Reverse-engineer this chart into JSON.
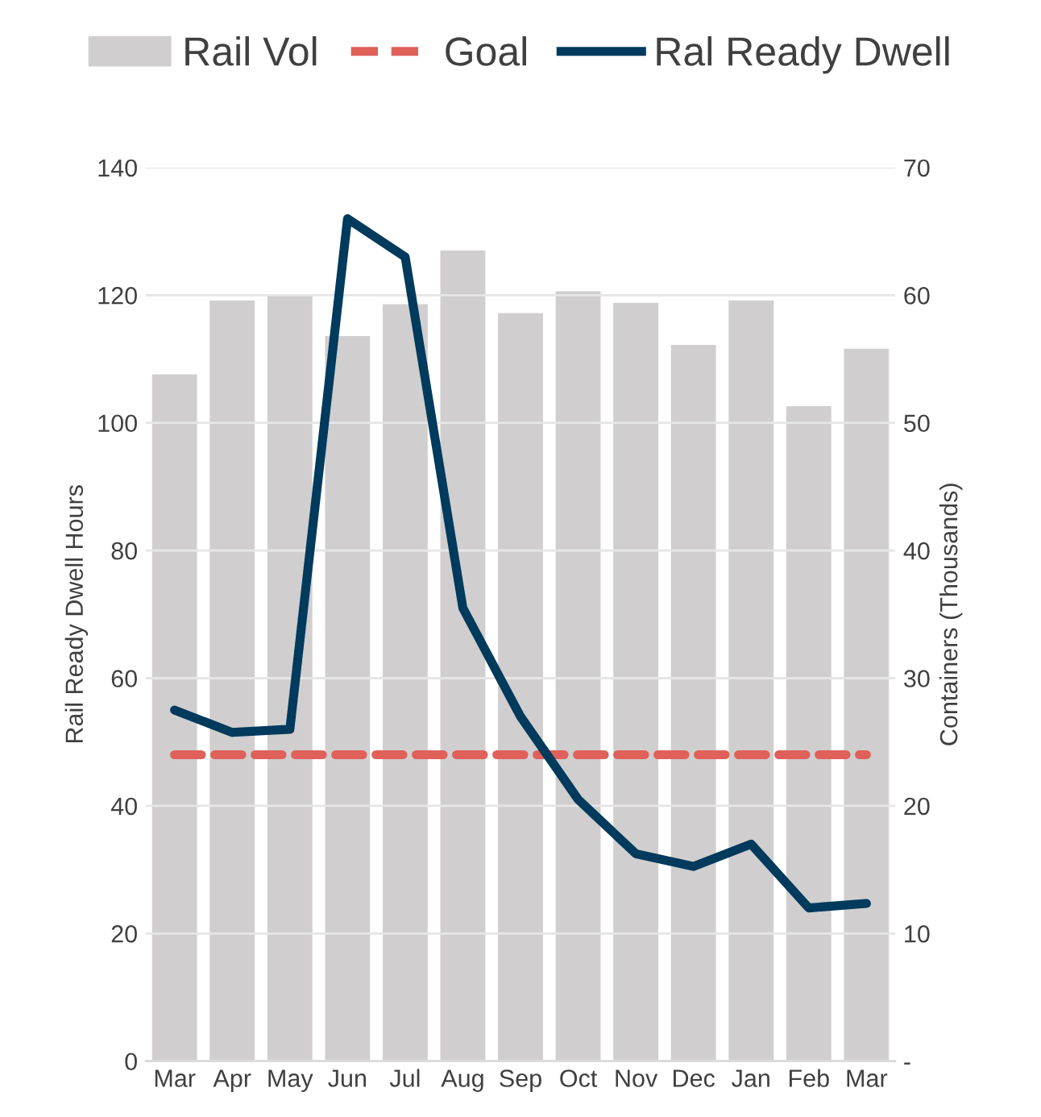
{
  "chart_data": {
    "type": "bar",
    "ylabel": "Rail Ready Dwell Hours",
    "y2label": "Containers (Thousands)",
    "categories": [
      "Mar",
      "Apr",
      "May",
      "Jun",
      "Jul",
      "Aug",
      "Sep",
      "Oct",
      "Nov",
      "Dec",
      "Jan",
      "Feb",
      "Mar"
    ],
    "series": [
      {
        "name": "Rail Vol",
        "axis": "y2",
        "color": "#d0cece",
        "values": [
          53.8,
          59.6,
          60,
          56.8,
          59.3,
          63.5,
          58.6,
          60.3,
          59.4,
          56.1,
          59.6,
          51.3,
          55.8
        ]
      },
      {
        "name": "Goal",
        "type": "line",
        "line_style": "dashed",
        "color": "#e0605a",
        "values": [
          48,
          48,
          48,
          48,
          48,
          48,
          48,
          48,
          48,
          48,
          48,
          48,
          48
        ]
      },
      {
        "name": "Ral Ready Dwell",
        "type": "line",
        "line_style": "solid",
        "color": "#003a5c",
        "values": [
          55,
          51.5,
          52,
          132,
          126,
          71,
          54,
          41,
          32.5,
          30.5,
          34,
          24,
          24.7
        ]
      }
    ],
    "ylim": [
      0,
      140
    ],
    "yticks": [
      0,
      20,
      40,
      60,
      80,
      100,
      120,
      140
    ],
    "y2lim": [
      0,
      70
    ],
    "y2ticks": [
      {
        "value": 0,
        "label": "-"
      },
      10,
      20,
      30,
      40,
      50,
      60,
      70
    ],
    "grid": "y",
    "legend": "top",
    "marker": "none"
  }
}
